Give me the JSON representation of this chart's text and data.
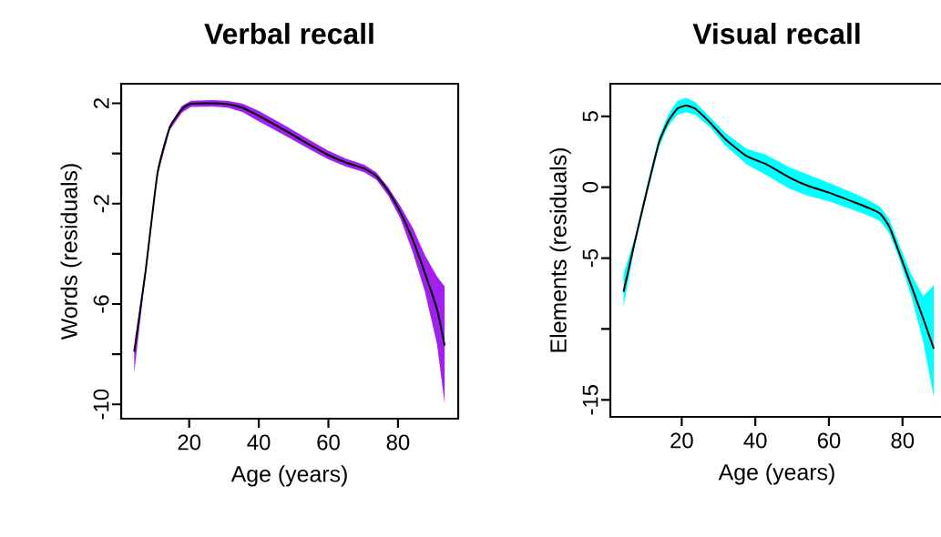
{
  "chart_data": [
    {
      "type": "line",
      "title": "Verbal recall",
      "xlabel": "Age (years)",
      "ylabel": "Words (residuals)",
      "x": [
        4.2,
        7.4,
        10.9,
        14.4,
        17.9,
        20.5,
        26.6,
        31,
        35.4,
        39.7,
        48.4,
        52.8,
        59.8,
        65,
        70.3,
        73.8,
        77.2,
        80.7,
        84.2,
        87.7,
        91.2,
        93.4
      ],
      "series": [
        {
          "color": "#a020f0",
          "values": [
            null,
            null,
            null,
            null,
            null,
            null,
            null,
            null,
            null,
            null,
            null,
            null,
            null,
            null,
            null,
            null,
            null,
            null,
            null,
            null,
            null,
            null
          ],
          "lower": [
            -8.75,
            -4.9,
            -0.88,
            0.93,
            1.63,
            1.85,
            1.87,
            1.83,
            1.65,
            1.3,
            0.65,
            0.3,
            -0.22,
            -0.52,
            -0.75,
            -1.05,
            -1.68,
            -2.6,
            -3.92,
            -5.49,
            -7.6,
            -9.96
          ],
          "upper": [
            -7.8,
            -4.65,
            -0.68,
            1.13,
            1.9,
            2.1,
            2.13,
            2.1,
            1.98,
            1.72,
            1.05,
            0.68,
            0.12,
            -0.2,
            -0.45,
            -0.76,
            -1.35,
            -2.1,
            -2.95,
            -4.04,
            -4.9,
            -5.3
          ]
        },
        {
          "color": "#000000",
          "values": [
            -7.9,
            -4.76,
            -0.78,
            1.03,
            1.76,
            1.98,
            2.0,
            1.96,
            1.82,
            1.52,
            0.85,
            0.49,
            -0.05,
            -0.36,
            -0.6,
            -0.9,
            -1.5,
            -2.35,
            -3.43,
            -4.76,
            -6.2,
            -7.66
          ]
        }
      ],
      "xlim": [
        0.45,
        97.3
      ],
      "ylim": [
        -10.57,
        2.78
      ],
      "xticks": [
        20,
        40,
        60,
        80
      ],
      "yticks": [
        -10,
        {
          "value": -8,
          "label": null
        },
        -6,
        {
          "value": -4,
          "label": null
        },
        -2,
        {
          "value": 0,
          "label": null
        },
        2
      ]
    },
    {
      "type": "line",
      "title": "Visual recall",
      "xlabel": "Age (years)",
      "ylabel": "Elements (residuals)",
      "x": [
        4.2,
        7.2,
        10.5,
        13.8,
        16.3,
        18.8,
        21.2,
        23.7,
        27.8,
        32,
        37.7,
        42.7,
        49.3,
        54.2,
        60,
        66.6,
        70.7,
        74,
        76.5,
        79,
        82.3,
        85.6,
        88.5
      ],
      "series": [
        {
          "color": "#00ffff",
          "values": [
            null,
            null,
            null,
            null,
            null,
            null,
            null,
            null,
            null,
            null,
            null,
            null,
            null,
            null,
            null,
            null,
            null,
            null,
            null,
            null,
            null,
            null,
            null
          ],
          "lower": [
            -8.4,
            -4.2,
            -0.6,
            2.8,
            4.3,
            5.1,
            5.3,
            5.1,
            4.2,
            2.9,
            1.6,
            0.9,
            -0.1,
            -0.6,
            -1.0,
            -1.6,
            -2.0,
            -2.4,
            -3.3,
            -5.0,
            -7.6,
            -10.9,
            -14.8
          ],
          "upper": [
            -6.1,
            -3.6,
            0.0,
            3.5,
            5.1,
            6.1,
            6.3,
            6.0,
            4.9,
            3.8,
            2.7,
            2.3,
            1.4,
            0.9,
            0.3,
            -0.4,
            -0.9,
            -1.4,
            -2.3,
            -4.0,
            -6.1,
            -7.7,
            -6.9
          ]
        },
        {
          "color": "#000000",
          "values": [
            -7.37,
            -3.91,
            -0.28,
            3.14,
            4.64,
            5.53,
            5.75,
            5.53,
            4.53,
            3.35,
            2.18,
            1.65,
            0.68,
            0.11,
            -0.38,
            -1.03,
            -1.45,
            -1.88,
            -2.84,
            -4.55,
            -6.9,
            -9.25,
            -11.39
          ]
        }
      ],
      "xlim": [
        0.6,
        91.2
      ],
      "ylim": [
        -16.2,
        7.3
      ],
      "xticks": [
        20,
        40,
        60,
        80
      ],
      "yticks": [
        -15,
        {
          "value": -10,
          "label": null
        },
        -5,
        0,
        5
      ]
    }
  ]
}
